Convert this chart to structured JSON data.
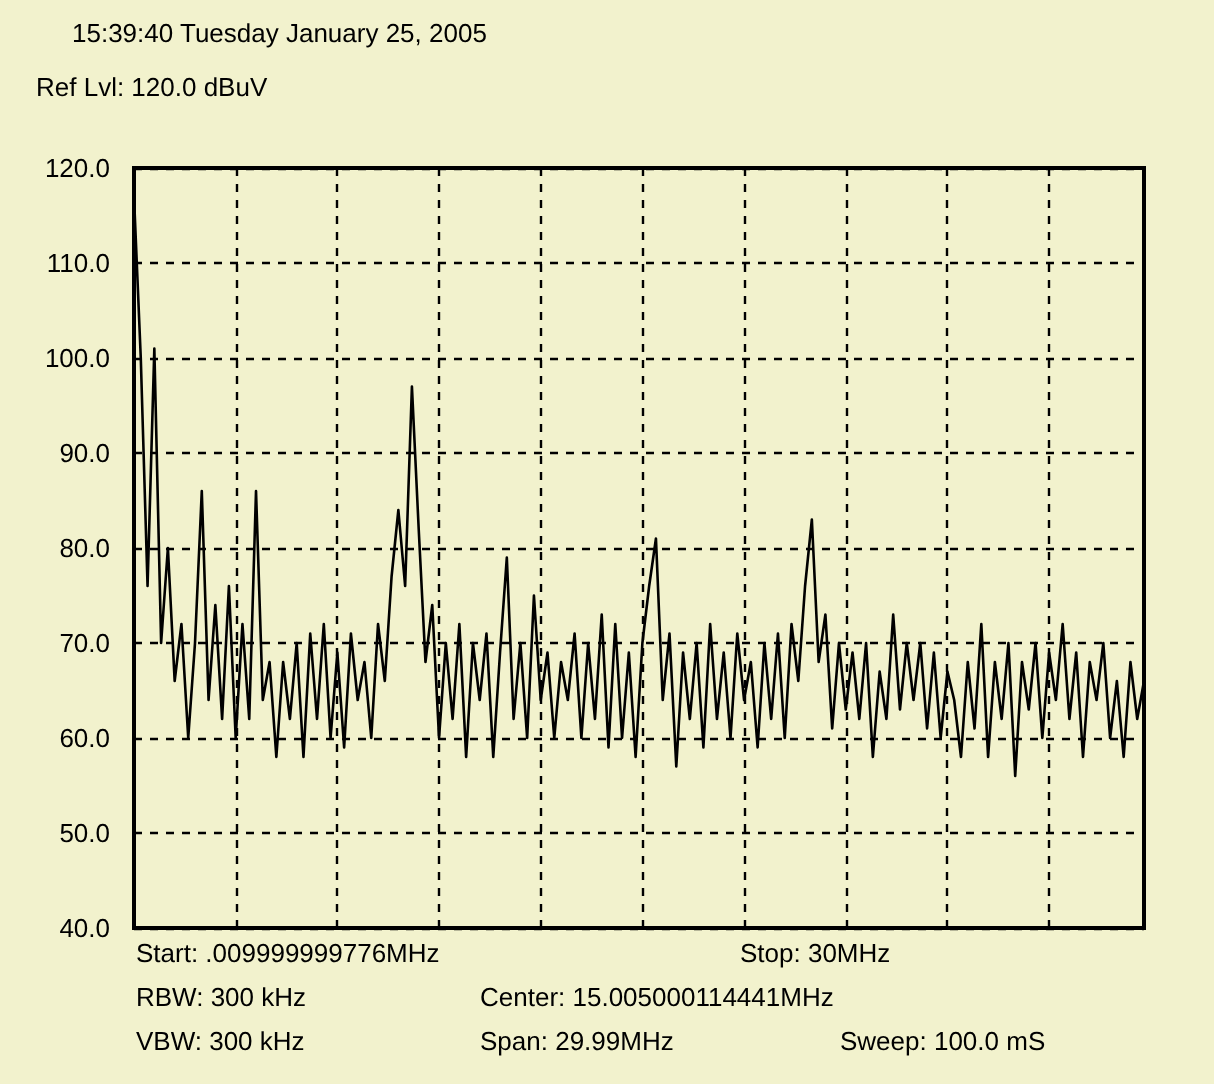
{
  "chart_data": {
    "type": "line",
    "title": "15:39:40 Tuesday January 25, 2005",
    "subtitle": "Ref Lvl: 120.0 dBuV",
    "annotations": [
      "Start: .009999999776MHz",
      "Stop: 30MHz",
      "RBW: 300 kHz",
      "Center: 15.005000114441MHz",
      "VBW: 300 kHz",
      "Span: 29.99MHz",
      "Sweep: 100.0 mS"
    ],
    "categories": [
      null,
      null,
      null,
      null,
      null,
      null,
      null,
      null,
      null,
      null,
      null,
      null,
      null,
      null,
      null,
      null,
      null,
      null,
      null,
      null,
      null,
      null,
      null,
      null,
      null,
      null,
      null,
      null,
      null,
      null,
      null,
      null,
      null,
      null,
      null,
      null,
      null,
      null,
      null,
      null,
      null,
      null,
      null,
      null,
      null,
      null,
      null,
      null,
      null,
      null,
      null,
      null,
      null,
      null,
      null,
      null,
      null,
      null,
      null,
      null,
      null,
      null,
      null,
      null,
      null,
      null,
      null,
      null,
      null,
      null,
      null,
      null,
      null,
      null,
      null,
      null,
      null,
      null,
      null,
      null,
      null,
      null,
      null,
      null,
      null,
      null,
      null,
      null,
      null,
      null,
      null,
      null,
      null,
      null,
      null,
      null,
      null,
      null,
      null,
      null,
      null,
      null,
      null,
      null,
      null,
      null,
      null,
      null,
      null,
      null,
      null,
      null,
      null,
      null,
      null,
      null,
      null,
      null,
      null,
      null,
      null,
      null,
      null,
      null,
      null,
      null,
      null,
      null,
      null,
      null,
      null,
      null,
      null,
      null,
      null,
      null,
      null,
      null,
      null,
      null,
      null,
      null,
      null,
      null,
      null,
      null,
      null,
      null,
      null,
      null
    ],
    "series": [
      {
        "color": "#000000",
        "values": [
          117,
          100,
          76,
          101,
          70,
          80,
          66,
          72,
          60,
          70,
          86,
          64,
          74,
          62,
          76,
          60,
          72,
          62,
          86,
          64,
          68,
          58,
          68,
          62,
          70,
          58,
          71,
          62,
          72,
          60,
          69,
          59,
          71,
          64,
          68,
          60,
          72,
          66,
          77,
          84,
          76,
          97,
          82,
          68,
          74,
          60,
          70,
          62,
          72,
          58,
          70,
          64,
          71,
          58,
          69,
          79,
          62,
          70,
          60,
          75,
          64,
          69,
          60,
          68,
          64,
          71,
          60,
          70,
          62,
          73,
          59,
          72,
          60,
          69,
          58,
          70,
          76,
          81,
          64,
          71,
          57,
          69,
          62,
          70,
          59,
          72,
          62,
          69,
          60,
          71,
          64,
          68,
          59,
          70,
          62,
          71,
          60,
          72,
          66,
          76,
          83,
          68,
          73,
          61,
          70,
          63,
          69,
          62,
          70,
          58,
          67,
          62,
          73,
          63,
          70,
          64,
          70,
          61,
          69,
          60,
          67,
          64,
          58,
          68,
          61,
          72,
          58,
          68,
          62,
          70,
          56,
          68,
          63,
          70,
          60,
          69,
          64,
          72,
          62,
          69,
          58,
          68,
          64,
          70,
          60,
          66,
          58,
          68,
          62,
          66
        ]
      }
    ],
    "ylim": [
      40,
      120
    ],
    "yticks": [
      {
        "value": 40,
        "label": "40.0"
      },
      {
        "value": 50,
        "label": "50.0"
      },
      {
        "value": 60,
        "label": "60.0"
      },
      {
        "value": 70,
        "label": "70.0"
      },
      {
        "value": 80,
        "label": "80.0"
      },
      {
        "value": 90,
        "label": "90.0"
      },
      {
        "value": 100,
        "label": "100.0"
      },
      {
        "value": 110,
        "label": "110.0"
      },
      {
        "value": 120,
        "label": "120.0"
      }
    ],
    "tick_labels": "y",
    "grid": true,
    "line_style": "solid"
  }
}
